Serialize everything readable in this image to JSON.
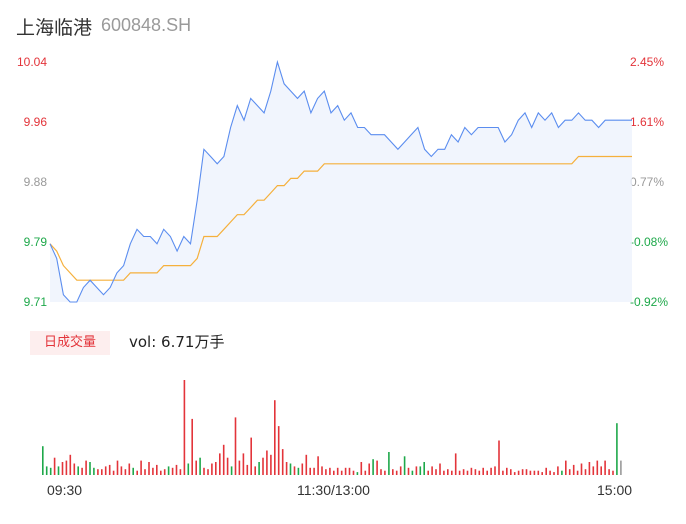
{
  "header": {
    "name": "上海临港",
    "code": "600848.SH"
  },
  "chart_data": {
    "type": "line",
    "y_left_ticks": [
      "10.04",
      "9.96",
      "9.88",
      "9.79",
      "9.71"
    ],
    "y_right_ticks": [
      "2.45%",
      "1.61%",
      "0.77%",
      "-0.08%",
      "-0.92%"
    ],
    "ylim": [
      9.71,
      10.04
    ],
    "x_ticks": [
      "09:30",
      "11:30/13:00",
      "15:00"
    ],
    "colors": {
      "price": "#5b8def",
      "avg": "#f5b03c",
      "up": "#e3343a",
      "down": "#1ea84a",
      "flat": "#999999"
    },
    "series": [
      {
        "name": "",
        "values": [
          9.79,
          9.77,
          9.72,
          9.71,
          9.71,
          9.73,
          9.74,
          9.73,
          9.72,
          9.73,
          9.75,
          9.76,
          9.79,
          9.81,
          9.8,
          9.8,
          9.79,
          9.81,
          9.8,
          9.78,
          9.8,
          9.79,
          9.85,
          9.92,
          9.91,
          9.9,
          9.91,
          9.95,
          9.98,
          9.96,
          9.99,
          9.98,
          9.97,
          10.0,
          10.04,
          10.01,
          10.0,
          9.99,
          10.0,
          9.97,
          9.99,
          10.0,
          9.97,
          9.98,
          9.96,
          9.97,
          9.95,
          9.95,
          9.94,
          9.94,
          9.94,
          9.93,
          9.92,
          9.93,
          9.94,
          9.95,
          9.92,
          9.91,
          9.92,
          9.92,
          9.94,
          9.93,
          9.95,
          9.94,
          9.95,
          9.95,
          9.95,
          9.95,
          9.93,
          9.94,
          9.96,
          9.97,
          9.95,
          9.97,
          9.96,
          9.97,
          9.95,
          9.96,
          9.96,
          9.97,
          9.96,
          9.96,
          9.95,
          9.96,
          9.96,
          9.96,
          9.96,
          9.96
        ]
      },
      {
        "name": "",
        "values": [
          9.79,
          9.78,
          9.76,
          9.75,
          9.74,
          9.74,
          9.74,
          9.74,
          9.74,
          9.74,
          9.74,
          9.74,
          9.75,
          9.75,
          9.75,
          9.75,
          9.75,
          9.76,
          9.76,
          9.76,
          9.76,
          9.76,
          9.77,
          9.8,
          9.8,
          9.8,
          9.81,
          9.82,
          9.83,
          9.83,
          9.84,
          9.85,
          9.85,
          9.86,
          9.87,
          9.87,
          9.88,
          9.88,
          9.89,
          9.89,
          9.89,
          9.9,
          9.9,
          9.9,
          9.9,
          9.9,
          9.9,
          9.9,
          9.9,
          9.9,
          9.9,
          9.9,
          9.9,
          9.9,
          9.9,
          9.9,
          9.9,
          9.9,
          9.9,
          9.9,
          9.9,
          9.9,
          9.9,
          9.9,
          9.9,
          9.9,
          9.9,
          9.9,
          9.9,
          9.9,
          9.9,
          9.9,
          9.9,
          9.9,
          9.9,
          9.9,
          9.9,
          9.9,
          9.9,
          9.91,
          9.91,
          9.91,
          9.91,
          9.91,
          9.91,
          9.91,
          9.91,
          9.91
        ]
      }
    ],
    "volume": {
      "label": "日成交量",
      "text": "vol: 6.71万手",
      "bars": [
        {
          "v": 20,
          "c": "down"
        },
        {
          "v": 6,
          "c": "down"
        },
        {
          "v": 5,
          "c": "down"
        },
        {
          "v": 12,
          "c": "up"
        },
        {
          "v": 6,
          "c": "down"
        },
        {
          "v": 9,
          "c": "up"
        },
        {
          "v": 10,
          "c": "up"
        },
        {
          "v": 14,
          "c": "up"
        },
        {
          "v": 8,
          "c": "up"
        },
        {
          "v": 6,
          "c": "down"
        },
        {
          "v": 5,
          "c": "up"
        },
        {
          "v": 10,
          "c": "up"
        },
        {
          "v": 9,
          "c": "down"
        },
        {
          "v": 5,
          "c": "down"
        },
        {
          "v": 4,
          "c": "up"
        },
        {
          "v": 4,
          "c": "up"
        },
        {
          "v": 6,
          "c": "up"
        },
        {
          "v": 7,
          "c": "up"
        },
        {
          "v": 3,
          "c": "up"
        },
        {
          "v": 10,
          "c": "up"
        },
        {
          "v": 6,
          "c": "up"
        },
        {
          "v": 4,
          "c": "up"
        },
        {
          "v": 8,
          "c": "up"
        },
        {
          "v": 5,
          "c": "down"
        },
        {
          "v": 3,
          "c": "up"
        },
        {
          "v": 10,
          "c": "up"
        },
        {
          "v": 4,
          "c": "up"
        },
        {
          "v": 9,
          "c": "up"
        },
        {
          "v": 5,
          "c": "up"
        },
        {
          "v": 7,
          "c": "up"
        },
        {
          "v": 3,
          "c": "up"
        },
        {
          "v": 4,
          "c": "up"
        },
        {
          "v": 6,
          "c": "down"
        },
        {
          "v": 5,
          "c": "up"
        },
        {
          "v": 7,
          "c": "up"
        },
        {
          "v": 4,
          "c": "up"
        },
        {
          "v": 66,
          "c": "up"
        },
        {
          "v": 8,
          "c": "down"
        },
        {
          "v": 39,
          "c": "up"
        },
        {
          "v": 10,
          "c": "up"
        },
        {
          "v": 12,
          "c": "down"
        },
        {
          "v": 5,
          "c": "up"
        },
        {
          "v": 4,
          "c": "up"
        },
        {
          "v": 8,
          "c": "up"
        },
        {
          "v": 9,
          "c": "up"
        },
        {
          "v": 15,
          "c": "up"
        },
        {
          "v": 21,
          "c": "up"
        },
        {
          "v": 12,
          "c": "up"
        },
        {
          "v": 6,
          "c": "down"
        },
        {
          "v": 40,
          "c": "up"
        },
        {
          "v": 10,
          "c": "up"
        },
        {
          "v": 15,
          "c": "up"
        },
        {
          "v": 7,
          "c": "up"
        },
        {
          "v": 26,
          "c": "up"
        },
        {
          "v": 6,
          "c": "up"
        },
        {
          "v": 9,
          "c": "down"
        },
        {
          "v": 12,
          "c": "up"
        },
        {
          "v": 17,
          "c": "up"
        },
        {
          "v": 14,
          "c": "up"
        },
        {
          "v": 52,
          "c": "up"
        },
        {
          "v": 34,
          "c": "up"
        },
        {
          "v": 18,
          "c": "up"
        },
        {
          "v": 9,
          "c": "up"
        },
        {
          "v": 8,
          "c": "down"
        },
        {
          "v": 6,
          "c": "up"
        },
        {
          "v": 5,
          "c": "down"
        },
        {
          "v": 8,
          "c": "up"
        },
        {
          "v": 14,
          "c": "up"
        },
        {
          "v": 5,
          "c": "up"
        },
        {
          "v": 5,
          "c": "up"
        },
        {
          "v": 13,
          "c": "up"
        },
        {
          "v": 6,
          "c": "up"
        },
        {
          "v": 4,
          "c": "up"
        },
        {
          "v": 5,
          "c": "up"
        },
        {
          "v": 3,
          "c": "up"
        },
        {
          "v": 5,
          "c": "up"
        },
        {
          "v": 3,
          "c": "up"
        },
        {
          "v": 5,
          "c": "up"
        },
        {
          "v": 5,
          "c": "up"
        },
        {
          "v": 3,
          "c": "up"
        },
        {
          "v": 2,
          "c": "down"
        },
        {
          "v": 9,
          "c": "up"
        },
        {
          "v": 3,
          "c": "up"
        },
        {
          "v": 8,
          "c": "up"
        },
        {
          "v": 11,
          "c": "down"
        },
        {
          "v": 10,
          "c": "up"
        },
        {
          "v": 4,
          "c": "up"
        },
        {
          "v": 3,
          "c": "up"
        },
        {
          "v": 16,
          "c": "down"
        },
        {
          "v": 4,
          "c": "up"
        },
        {
          "v": 3,
          "c": "up"
        },
        {
          "v": 6,
          "c": "up"
        },
        {
          "v": 13,
          "c": "down"
        },
        {
          "v": 5,
          "c": "up"
        },
        {
          "v": 3,
          "c": "down"
        },
        {
          "v": 6,
          "c": "up"
        },
        {
          "v": 6,
          "c": "down"
        },
        {
          "v": 9,
          "c": "down"
        },
        {
          "v": 3,
          "c": "up"
        },
        {
          "v": 6,
          "c": "up"
        },
        {
          "v": 4,
          "c": "up"
        },
        {
          "v": 8,
          "c": "up"
        },
        {
          "v": 3,
          "c": "up"
        },
        {
          "v": 4,
          "c": "up"
        },
        {
          "v": 3,
          "c": "up"
        },
        {
          "v": 15,
          "c": "up"
        },
        {
          "v": 3,
          "c": "up"
        },
        {
          "v": 4,
          "c": "up"
        },
        {
          "v": 3,
          "c": "up"
        },
        {
          "v": 5,
          "c": "up"
        },
        {
          "v": 4,
          "c": "up"
        },
        {
          "v": 3,
          "c": "up"
        },
        {
          "v": 5,
          "c": "up"
        },
        {
          "v": 3,
          "c": "up"
        },
        {
          "v": 5,
          "c": "up"
        },
        {
          "v": 6,
          "c": "up"
        },
        {
          "v": 24,
          "c": "up"
        },
        {
          "v": 3,
          "c": "up"
        },
        {
          "v": 5,
          "c": "up"
        },
        {
          "v": 4,
          "c": "up"
        },
        {
          "v": 2,
          "c": "up"
        },
        {
          "v": 3,
          "c": "up"
        },
        {
          "v": 4,
          "c": "up"
        },
        {
          "v": 4,
          "c": "up"
        },
        {
          "v": 3,
          "c": "up"
        },
        {
          "v": 3,
          "c": "up"
        },
        {
          "v": 3,
          "c": "up"
        },
        {
          "v": 2,
          "c": "up"
        },
        {
          "v": 5,
          "c": "up"
        },
        {
          "v": 3,
          "c": "up"
        },
        {
          "v": 2,
          "c": "up"
        },
        {
          "v": 6,
          "c": "up"
        },
        {
          "v": 3,
          "c": "down"
        },
        {
          "v": 10,
          "c": "up"
        },
        {
          "v": 4,
          "c": "up"
        },
        {
          "v": 7,
          "c": "up"
        },
        {
          "v": 3,
          "c": "up"
        },
        {
          "v": 8,
          "c": "up"
        },
        {
          "v": 4,
          "c": "up"
        },
        {
          "v": 9,
          "c": "up"
        },
        {
          "v": 6,
          "c": "up"
        },
        {
          "v": 10,
          "c": "up"
        },
        {
          "v": 6,
          "c": "up"
        },
        {
          "v": 10,
          "c": "up"
        },
        {
          "v": 4,
          "c": "up"
        },
        {
          "v": 3,
          "c": "up"
        },
        {
          "v": 36,
          "c": "down"
        },
        {
          "v": 10,
          "c": "flat"
        }
      ]
    }
  }
}
